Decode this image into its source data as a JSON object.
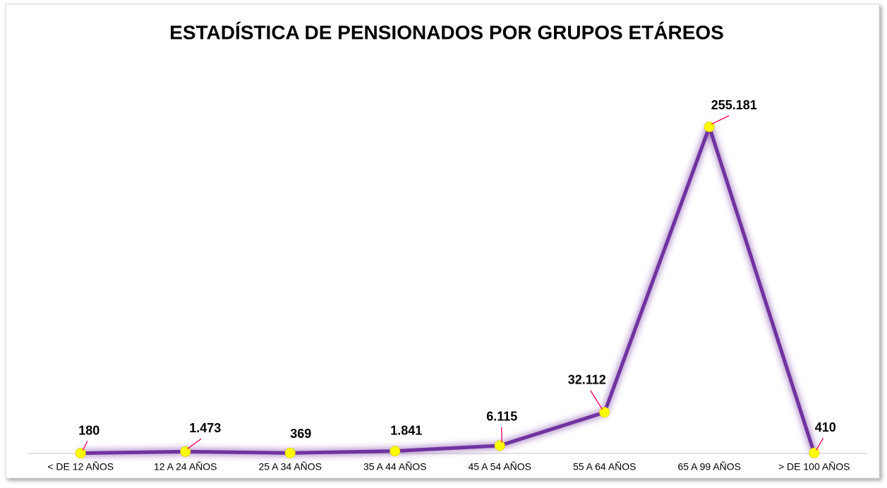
{
  "chart_data": {
    "type": "line",
    "title": "ESTADÍSTICA DE PENSIONADOS POR GRUPOS ETÁREOS",
    "categories": [
      "< DE 12 AÑOS",
      "12 A 24 AÑOS",
      "25 A 34 AÑOS",
      "35 A 44 AÑOS",
      "45 A 54 AÑOS",
      "55 A 64 AÑOS",
      "65 A 99 AÑOS",
      "> DE 100 AÑOS"
    ],
    "series": [
      {
        "color": "#7030a0",
        "marker_color": "#ffff00",
        "values": [
          180,
          1473,
          369,
          1841,
          6115,
          32112,
          255181,
          410
        ],
        "value_labels": [
          "180",
          "1.473",
          "369",
          "1.841",
          "6.115",
          "32.112",
          "255.181",
          "410"
        ]
      }
    ]
  }
}
